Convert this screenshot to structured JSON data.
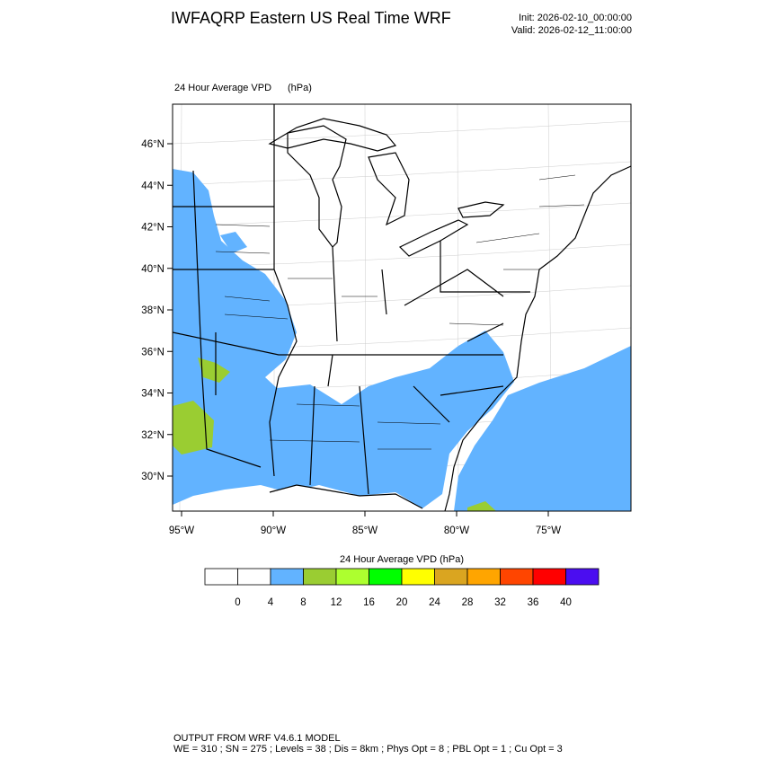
{
  "header": {
    "title": "IWFAQRP Eastern US Real Time WRF",
    "init": "Init: 2026-02-10_00:00:00",
    "valid": "Valid: 2026-02-12_11:00:00"
  },
  "map": {
    "field_label": "24 Hour Average VPD",
    "units": "(hPa)",
    "lat_labels": [
      "46°N",
      "44°N",
      "42°N",
      "40°N",
      "38°N",
      "36°N",
      "34°N",
      "32°N",
      "30°N"
    ],
    "lon_labels": [
      "95°W",
      "90°W",
      "85°W",
      "80°W",
      "75°W"
    ]
  },
  "colorbar": {
    "title": "24 Hour Average VPD  (hPa)",
    "colors": [
      "#ffffff",
      "#ffffff",
      "#62b3ff",
      "#9acd32",
      "#adff2f",
      "#00ff00",
      "#ffff00",
      "#daa520",
      "#ffa500",
      "#ff4500",
      "#ff0000",
      "#4b0df0"
    ],
    "labels": [
      0,
      4,
      8,
      12,
      16,
      20,
      24,
      28,
      32,
      36,
      40
    ]
  },
  "footer": {
    "line1": "OUTPUT FROM WRF V4.6.1 MODEL",
    "line2": "WE = 310 ; SN = 275 ; Levels = 38 ; Dis = 8km ; Phys Opt = 8 ; PBL Opt = 1 ; Cu Opt = 3"
  }
}
